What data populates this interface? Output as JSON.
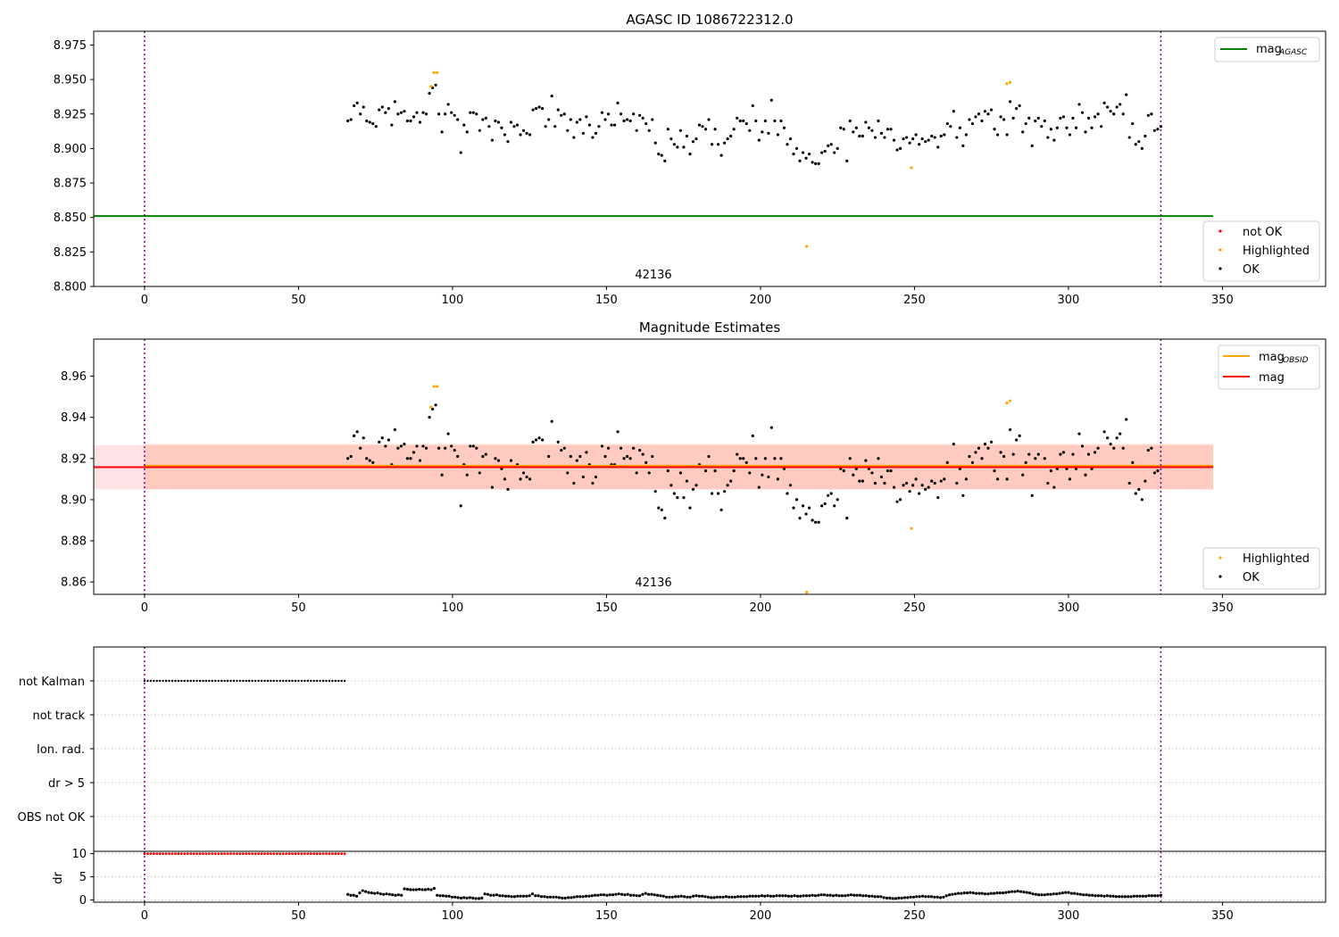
{
  "colors": {
    "ok": "#000000",
    "highlighted": "#ffa500",
    "not_ok": "#ff0000",
    "agasc_line": "#008000",
    "obsid_line": "#ffa500",
    "mag_line": "#ff0000",
    "band_outer": "#ffb6c1",
    "band_inner": "#ffa07a",
    "obsid_marker": "#800080",
    "grid": "#b0b0b0"
  },
  "chart_data": [
    {
      "type": "scatter",
      "title": "AGASC ID 1086722312.0",
      "obsid_label": "42136",
      "xlim": [
        -16.5,
        383.5
      ],
      "ylim": [
        8.8,
        8.985
      ],
      "xticks": [
        0,
        50,
        100,
        150,
        200,
        250,
        300,
        350
      ],
      "xtick_labels": [
        "0",
        "50",
        "100",
        "150",
        "200",
        "250",
        "300",
        "350"
      ],
      "yticks": [
        8.8,
        8.825,
        8.85,
        8.875,
        8.9,
        8.925,
        8.95,
        8.975
      ],
      "ytick_labels": [
        "8.800",
        "8.825",
        "8.850",
        "8.875",
        "8.900",
        "8.925",
        "8.950",
        "8.975"
      ],
      "obsid_lines_x": [
        0,
        330
      ],
      "mag_agasc": {
        "value": 8.851,
        "x_range": [
          -16.5,
          347
        ]
      },
      "legend_top": [
        {
          "label": "mag",
          "sub": "AGASC",
          "color": "#008000"
        }
      ],
      "legend_bottom": [
        {
          "label": "not OK",
          "color": "#ff0000"
        },
        {
          "label": "Highlighted",
          "color": "#ffa500"
        },
        {
          "label": "OK",
          "color": "#000000"
        }
      ],
      "ok_points": {
        "x_range": [
          66,
          330
        ],
        "y": [
          8.92,
          8.921,
          8.931,
          8.933,
          8.925,
          8.93,
          8.92,
          8.919,
          8.918,
          8.916,
          8.928,
          8.93,
          8.926,
          8.929,
          8.917,
          8.934,
          8.925,
          8.926,
          8.927,
          8.92,
          8.92,
          8.923,
          8.926,
          8.919,
          8.926,
          8.925,
          8.94,
          8.944,
          8.946,
          8.925,
          8.912,
          8.925,
          8.932,
          8.926,
          8.924,
          8.921,
          8.897,
          8.917,
          8.912,
          8.926,
          8.926,
          8.925,
          8.913,
          8.921,
          8.922,
          8.916,
          8.906,
          8.92,
          8.919,
          8.915,
          8.91,
          8.905,
          8.919,
          8.916,
          8.917,
          8.91,
          8.913,
          8.911,
          8.91,
          8.928,
          8.929,
          8.93,
          8.929,
          8.916,
          8.921,
          8.938,
          8.916,
          8.928,
          8.924,
          8.925,
          8.913,
          8.921,
          8.908,
          8.919,
          8.921,
          8.911,
          8.923,
          8.917,
          8.908,
          8.911,
          8.916,
          8.926,
          8.921,
          8.925,
          8.917,
          8.917,
          8.933,
          8.925,
          8.92,
          8.921,
          8.92,
          8.925,
          8.913,
          8.924,
          8.922,
          8.918,
          8.913,
          8.921,
          8.904,
          8.896,
          8.895,
          8.891,
          8.914,
          8.907,
          8.903,
          8.901,
          8.913,
          8.901,
          8.909,
          8.896,
          8.905,
          8.907,
          8.917,
          8.916,
          8.914,
          8.921,
          8.903,
          8.914,
          8.903,
          8.895,
          8.904,
          8.907,
          8.909,
          8.914,
          8.922,
          8.92,
          8.92,
          8.918,
          8.913,
          8.931,
          8.92,
          8.906,
          8.912,
          8.92,
          8.911,
          8.935,
          8.92,
          8.91,
          8.92,
          8.915,
          8.903,
          8.907,
          8.896,
          8.9,
          8.891,
          8.897,
          8.893,
          8.896,
          8.89,
          8.889,
          8.889,
          8.897,
          8.898,
          8.902,
          8.903,
          8.897,
          8.9,
          8.915,
          8.914,
          8.891,
          8.92,
          8.912,
          8.915,
          8.909,
          8.909,
          8.919,
          8.915,
          8.913,
          8.908,
          8.92,
          8.911,
          8.908,
          8.914,
          8.914,
          8.906,
          8.899,
          8.9,
          8.907,
          8.908,
          8.904,
          8.907,
          8.91,
          8.903,
          8.907,
          8.905,
          8.906,
          8.909,
          8.908,
          8.901,
          8.909,
          8.91,
          8.918,
          8.916,
          8.927,
          8.908,
          8.915,
          8.902,
          8.91,
          8.921,
          8.918,
          8.923,
          8.925,
          8.92,
          8.927,
          8.925,
          8.928,
          8.914,
          8.91,
          8.923,
          8.921,
          8.91,
          8.934,
          8.922,
          8.929,
          8.931,
          8.912,
          8.918,
          8.922,
          8.902,
          8.92,
          8.922,
          8.916,
          8.92,
          8.908,
          8.914,
          8.906,
          8.915,
          8.922,
          8.923,
          8.915,
          8.91,
          8.922,
          8.915,
          8.932,
          8.926,
          8.912,
          8.922,
          8.915,
          8.923,
          8.925,
          8.916,
          8.933,
          8.93,
          8.927,
          8.925,
          8.93,
          8.932,
          8.925,
          8.939,
          8.908,
          8.918,
          8.903,
          8.905,
          8.9,
          8.909,
          8.924,
          8.925,
          8.913,
          8.914,
          8.916
        ]
      },
      "highlighted_points": {
        "x": [
          93,
          94,
          95,
          215,
          249,
          280,
          281
        ],
        "y": [
          8.945,
          8.955,
          8.955,
          8.829,
          8.886,
          8.947,
          8.948
        ]
      },
      "not_ok_points": {
        "x": [],
        "y": []
      }
    },
    {
      "type": "scatter",
      "title": "Magnitude Estimates",
      "obsid_label": "42136",
      "xlim": [
        -16.5,
        383.5
      ],
      "ylim": [
        8.854,
        8.978
      ],
      "xticks": [
        0,
        50,
        100,
        150,
        200,
        250,
        300,
        350
      ],
      "xtick_labels": [
        "0",
        "50",
        "100",
        "150",
        "200",
        "250",
        "300",
        "350"
      ],
      "yticks": [
        8.86,
        8.88,
        8.9,
        8.92,
        8.94,
        8.96
      ],
      "ytick_labels": [
        "8.86",
        "8.88",
        "8.90",
        "8.92",
        "8.94",
        "8.96"
      ],
      "obsid_lines_x": [
        0,
        330
      ],
      "mag_obsid": {
        "value": 8.9165,
        "x_range": [
          0,
          347
        ]
      },
      "mag": {
        "value": 8.9158,
        "x_range": [
          -16.5,
          347
        ]
      },
      "band_outer": {
        "lo": 8.905,
        "hi": 8.9265,
        "x_range": [
          -16.5,
          347
        ]
      },
      "band_inner": {
        "lo": 8.905,
        "hi": 8.927,
        "x_range": [
          0,
          347
        ]
      },
      "legend_top": [
        {
          "label": "mag",
          "sub": "OBSID",
          "color": "#ffa500"
        },
        {
          "label": "mag",
          "sub": "",
          "color": "#ff0000"
        }
      ],
      "legend_bottom": [
        {
          "label": "Highlighted",
          "color": "#ffa500"
        },
        {
          "label": "OK",
          "color": "#000000"
        }
      ],
      "highlighted_points": {
        "x": [
          93,
          94,
          95,
          215,
          249,
          280,
          281
        ],
        "y": [
          8.945,
          8.955,
          8.955,
          8.855,
          8.886,
          8.947,
          8.948
        ]
      }
    },
    {
      "type": "scatter",
      "title": "",
      "xlim": [
        -16.5,
        383.5
      ],
      "categories": [
        "not Kalman",
        "not track",
        "Ion. rad.",
        "dr > 5",
        "OBS not OK"
      ],
      "flag_not_kalman_x_range": [
        0,
        65
      ],
      "obsid_lines_x": [
        0,
        330
      ]
    },
    {
      "type": "scatter",
      "title": "",
      "ylabel": "dr",
      "xlim": [
        -16.5,
        383.5
      ],
      "ylim": [
        -0.5,
        10.5
      ],
      "yticks": [
        0,
        5,
        10
      ],
      "ytick_labels": [
        "0",
        "5",
        "10"
      ],
      "xticks": [
        0,
        50,
        100,
        150,
        200,
        250,
        300,
        350
      ],
      "xtick_labels": [
        "0",
        "50",
        "100",
        "150",
        "200",
        "250",
        "300",
        "350"
      ],
      "obsid_lines_x": [
        0,
        330
      ],
      "dr_high": {
        "value": 10,
        "x_range": [
          0,
          65
        ]
      },
      "dr_points": {
        "x_range": [
          66,
          330
        ],
        "y": [
          1.2,
          1.0,
          1.0,
          0.8,
          1.5,
          2.0,
          1.8,
          1.6,
          1.5,
          1.4,
          1.5,
          1.3,
          1.2,
          1.3,
          1.2,
          1.1,
          1.0,
          1.1,
          1.0,
          2.4,
          2.3,
          2.2,
          2.2,
          2.2,
          2.3,
          2.2,
          2.2,
          2.3,
          2.2,
          2.5,
          1.0,
          0.9,
          0.9,
          0.8,
          0.8,
          0.6,
          0.6,
          0.5,
          0.4,
          0.5,
          0.4,
          0.5,
          0.4,
          0.3,
          0.3,
          0.4,
          1.3,
          1.2,
          1.0,
          1.0,
          1.1,
          0.9,
          0.9,
          0.8,
          0.8,
          0.7,
          0.7,
          0.8,
          0.8,
          0.8,
          0.8,
          0.9,
          1.3,
          0.9,
          0.9,
          0.7,
          0.7,
          0.6,
          0.6,
          0.6,
          0.6,
          0.5,
          0.4,
          0.4,
          0.5,
          0.5,
          0.6,
          0.7,
          0.7,
          0.7,
          0.8,
          0.8,
          0.9,
          1.0,
          1.0,
          1.1,
          1.1,
          1.0,
          1.1,
          1.1,
          1.2,
          1.3,
          1.2,
          1.1,
          1.2,
          1.0,
          1.0,
          0.9,
          0.9,
          1.2,
          1.4,
          1.2,
          1.2,
          1.1,
          1.0,
          0.9,
          0.8,
          0.6,
          0.6,
          0.6,
          0.7,
          0.7,
          0.8,
          0.7,
          0.6,
          0.6,
          0.8,
          0.9,
          0.8,
          0.8,
          0.7,
          0.6,
          0.5,
          0.5,
          0.6,
          0.6,
          0.6,
          0.7,
          0.6,
          0.6,
          0.6,
          0.7,
          0.7,
          0.7,
          0.7,
          0.8,
          0.8,
          0.8,
          0.8,
          0.9,
          0.8,
          0.9,
          0.8,
          0.8,
          0.9,
          0.9,
          0.9,
          0.9,
          0.8,
          0.8,
          0.9,
          0.8,
          0.8,
          0.9,
          0.9,
          0.9,
          1.0,
          0.9,
          1.0,
          1.1,
          1.1,
          1.0,
          1.0,
          0.9,
          1.0,
          0.9,
          0.9,
          0.9,
          1.0,
          1.1,
          1.0,
          1.0,
          1.0,
          0.9,
          0.9,
          0.8,
          0.8,
          0.7,
          0.7,
          0.7,
          0.5,
          0.4,
          0.4,
          0.3,
          0.3,
          0.4,
          0.4,
          0.5,
          0.5,
          0.6,
          0.6,
          0.7,
          0.7,
          0.8,
          0.7,
          0.7,
          0.7,
          0.6,
          0.6,
          0.5,
          0.6,
          0.9,
          1.1,
          1.2,
          1.3,
          1.4,
          1.4,
          1.5,
          1.5,
          1.6,
          1.5,
          1.4,
          1.4,
          1.4,
          1.3,
          1.3,
          1.4,
          1.4,
          1.5,
          1.5,
          1.5,
          1.6,
          1.7,
          1.8,
          1.8,
          1.9,
          1.8,
          1.7,
          1.6,
          1.5,
          1.3,
          1.2,
          1.1,
          1.1,
          1.1,
          1.2,
          1.2,
          1.3,
          1.3,
          1.4,
          1.5,
          1.6,
          1.6,
          1.4,
          1.4,
          1.3,
          1.2,
          1.1,
          1.1,
          1.0,
          1.0,
          0.9,
          0.9,
          0.9,
          0.8,
          0.9,
          0.8,
          0.8,
          0.7,
          0.7,
          0.7,
          0.7,
          0.7,
          0.7,
          0.8,
          0.8,
          0.8,
          0.8,
          0.8,
          0.9,
          0.9,
          0.9,
          0.9,
          1.0
        ]
      }
    }
  ]
}
